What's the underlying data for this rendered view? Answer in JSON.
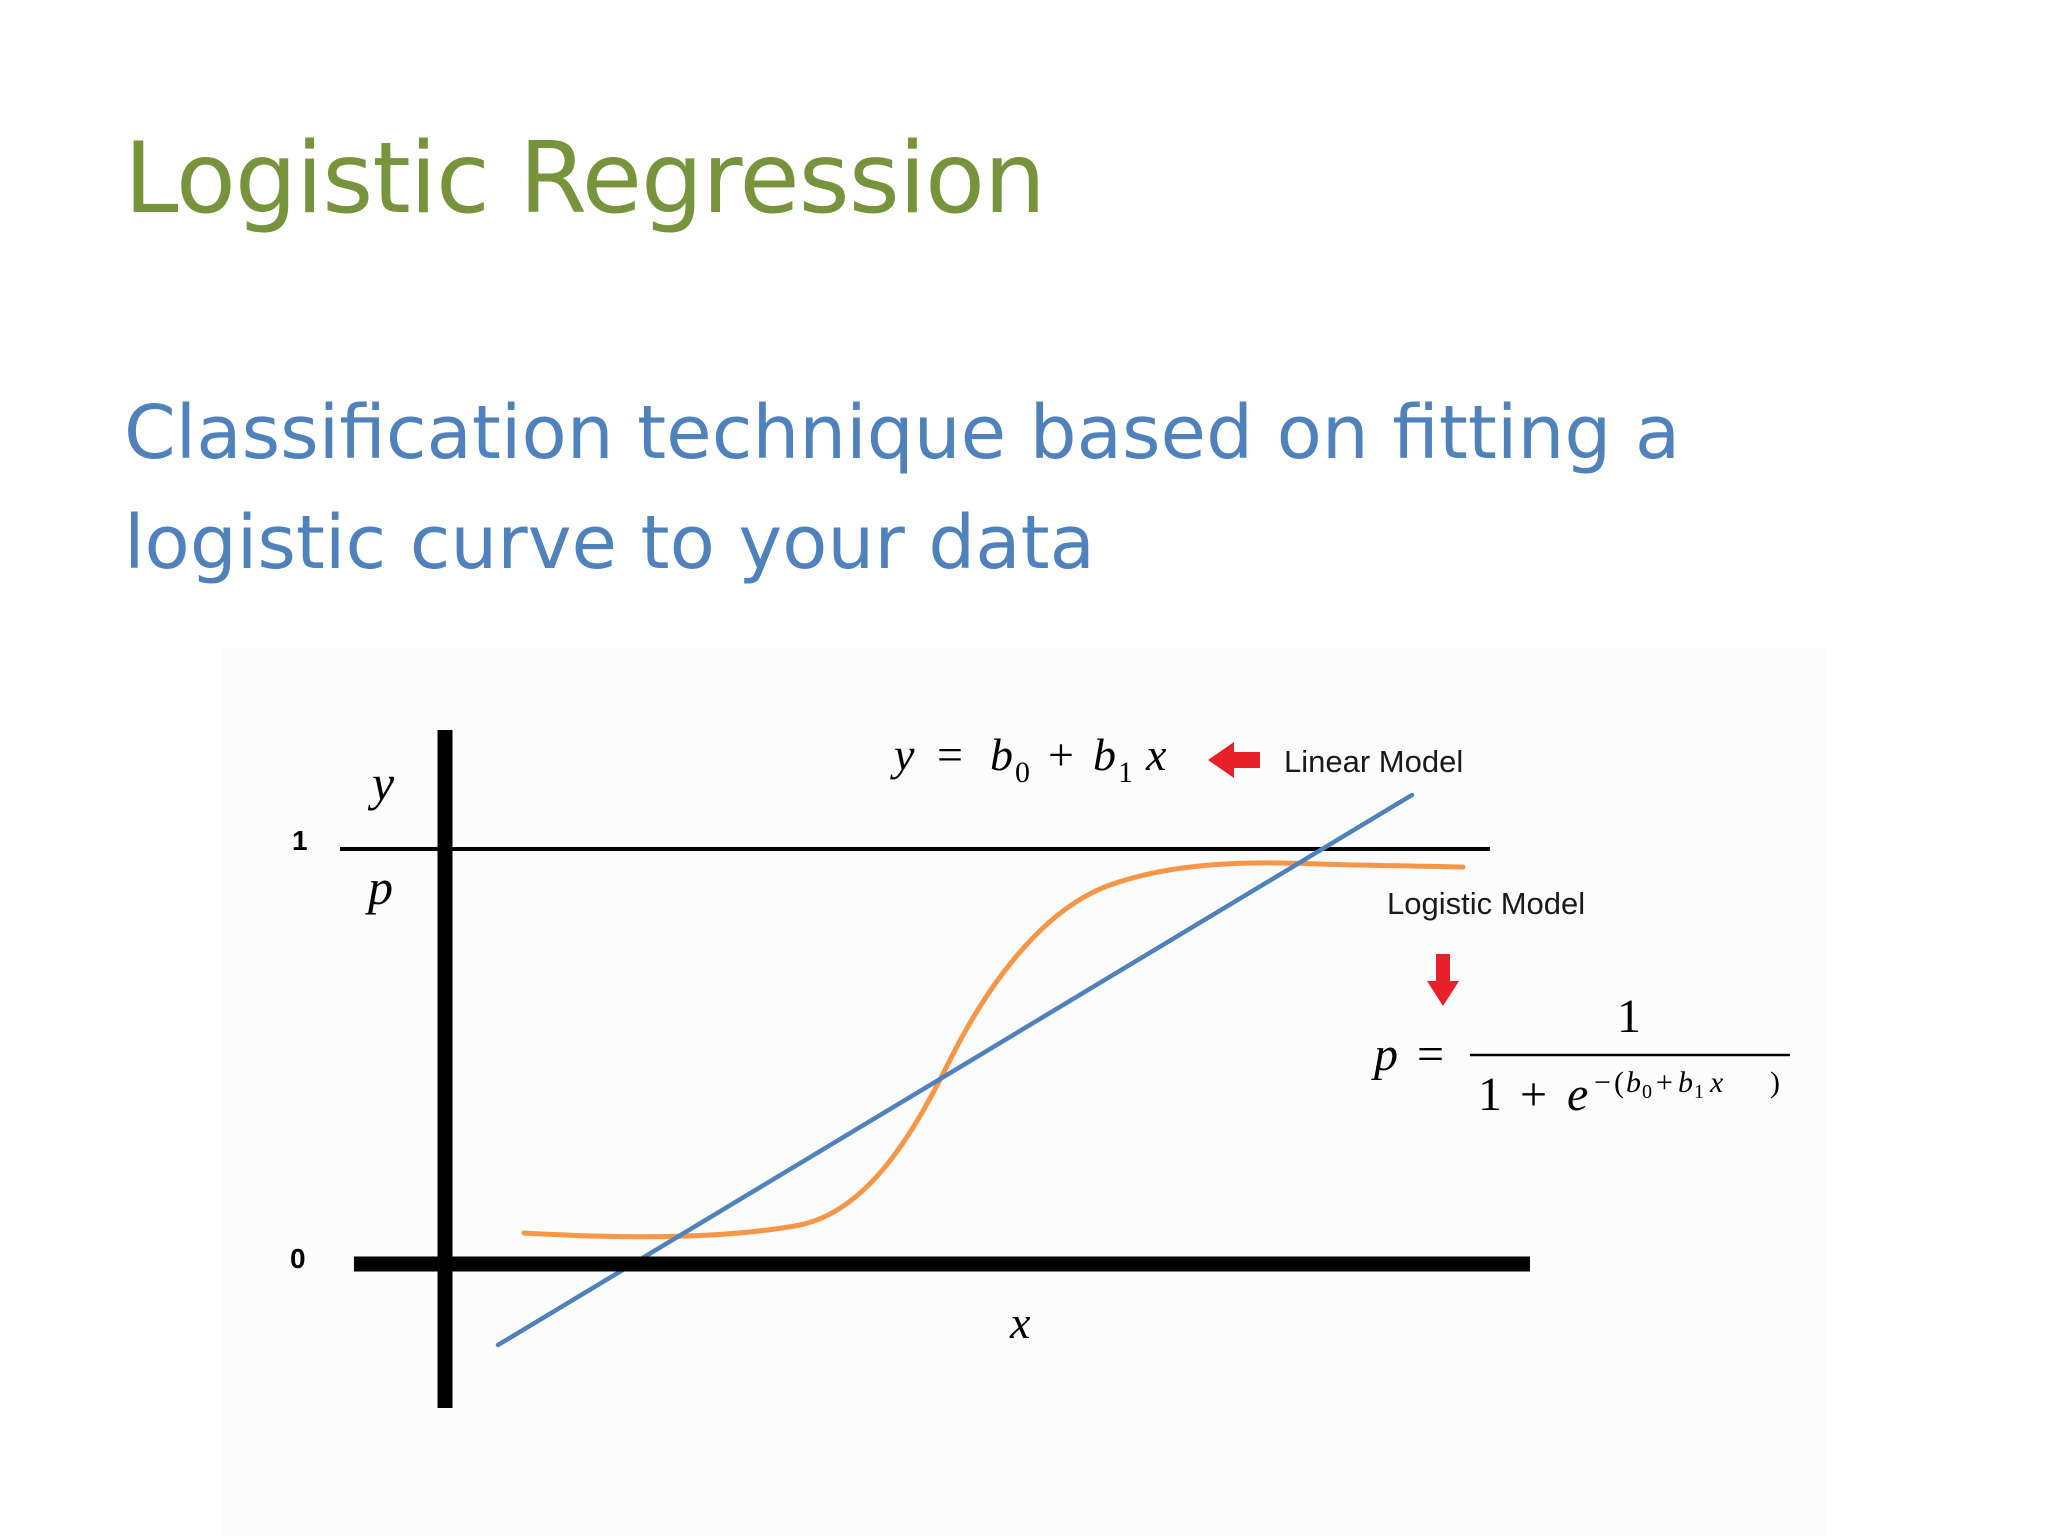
{
  "title": "Logistic Regression",
  "subtitle_lines": [
    "Classification technique based on fitting a",
    "logistic curve to your data"
  ],
  "colors": {
    "title": "#77933c",
    "subtitle": "#4f81bd",
    "linear_line": "#4f81bd",
    "logistic_curve": "#f79646",
    "arrow": "#e8202a",
    "axes": "#000000"
  },
  "diagram": {
    "tick_one": "1",
    "tick_zero": "0",
    "y_label": "y",
    "p_label": "p",
    "x_label": "x",
    "linear_formula": {
      "y": "y",
      "eq": "=",
      "b0": "b",
      "sub0": "0",
      "plus": "+",
      "b1": "b",
      "sub1": "1",
      "x": "x"
    },
    "linear_model_label": "Linear Model",
    "logistic_model_label": "Logistic Model",
    "logistic_formula": {
      "p": "p",
      "eq": "=",
      "numerator": "1",
      "den_one": "1",
      "den_plus": "+",
      "den_e": "e",
      "exp_minus": "−",
      "exp_open": "(",
      "exp_b0": "b",
      "exp_sub0": "0",
      "exp_plus": "+",
      "exp_b1": "b",
      "exp_sub1": "1",
      "exp_x": "x",
      "exp_close": ")"
    },
    "arrow_left_icon": "arrow-left-icon",
    "arrow_down_icon": "arrow-down-icon"
  }
}
